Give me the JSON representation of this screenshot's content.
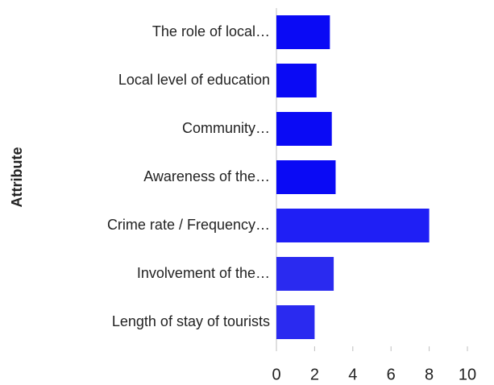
{
  "chart_data": {
    "type": "barh",
    "y_label": "Attribute",
    "categories": [
      "The role of local…",
      "Local level of education",
      "Community…",
      "Awareness of the…",
      "Crime rate / Frequency…",
      "Involvement of the…",
      "Length of stay of tourists"
    ],
    "values": [
      2.8,
      2.1,
      2.9,
      3.1,
      8.0,
      3.0,
      2.0
    ],
    "colors": [
      "#0a0af5",
      "#0a0af5",
      "#0a0af5",
      "#0a0af5",
      "#1f1ff5",
      "#2a2af0",
      "#2a2af0"
    ],
    "xlim": [
      0,
      10
    ],
    "xticks": [
      0,
      2,
      4,
      6,
      8,
      10
    ]
  }
}
